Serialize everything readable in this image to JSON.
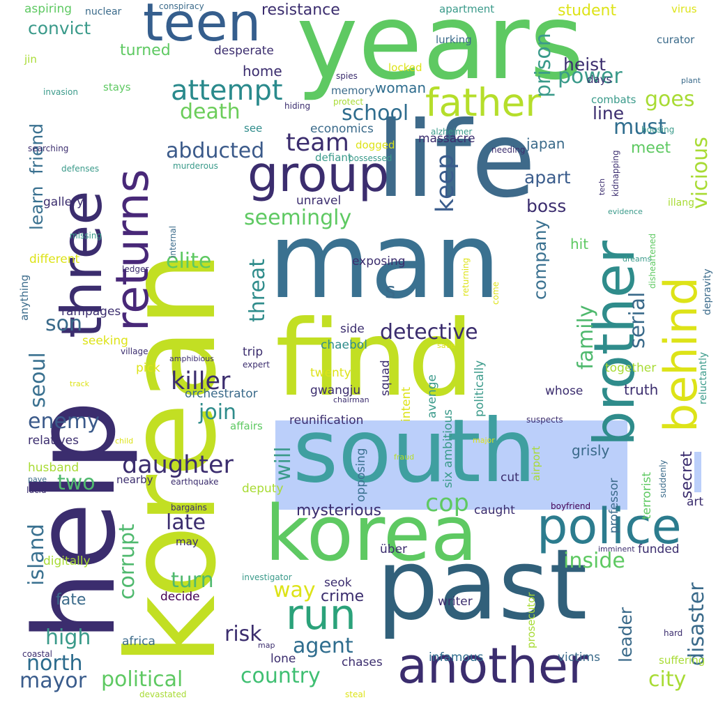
{
  "words": [
    {
      "text": "years",
      "size": 150,
      "color": "#5ec962",
      "rot": 0
    },
    {
      "text": "life",
      "size": 150,
      "color": "#3e6a8a",
      "rot": 0
    },
    {
      "text": "man",
      "size": 150,
      "color": "#3a7190",
      "rot": 0
    },
    {
      "text": "korean",
      "size": 175,
      "color": "#c2df23",
      "rot": -90
    },
    {
      "text": "help",
      "size": 160,
      "color": "#3b2d6e",
      "rot": -90
    },
    {
      "text": "find",
      "size": 150,
      "color": "#c2df23",
      "rot": 0
    },
    {
      "text": "past",
      "size": 140,
      "color": "#31607a",
      "rot": 0
    },
    {
      "text": "korea",
      "size": 110,
      "color": "#5ec962",
      "rot": 0
    },
    {
      "text": "south",
      "size": 125,
      "color": "#3f9fa0",
      "rot": 0
    },
    {
      "text": "three",
      "size": 80,
      "color": "#3b2d6e",
      "rot": -90
    },
    {
      "text": "teen",
      "size": 75,
      "color": "#355e8d",
      "rot": 0
    },
    {
      "text": "brother",
      "size": 80,
      "color": "#2f8c8b",
      "rot": -90
    },
    {
      "text": "behind",
      "size": 65,
      "color": "#dde318",
      "rot": -90
    },
    {
      "text": "another",
      "size": 70,
      "color": "#3b2d6e",
      "rot": 0
    },
    {
      "text": "police",
      "size": 70,
      "color": "#2c7c8e",
      "rot": 0
    },
    {
      "text": "group",
      "size": 70,
      "color": "#3b2d6e",
      "rot": 0
    },
    {
      "text": "father",
      "size": 55,
      "color": "#b5de2b",
      "rot": 0
    },
    {
      "text": "returns",
      "size": 65,
      "color": "#482878",
      "rot": -90
    },
    {
      "text": "run",
      "size": 60,
      "color": "#2ba27a",
      "rot": 0
    },
    {
      "text": "attempt",
      "size": 40,
      "color": "#2a8a8c",
      "rot": 0
    },
    {
      "text": "death",
      "size": 30,
      "color": "#6bcd5a",
      "rot": 0
    },
    {
      "text": "abducted",
      "size": 30,
      "color": "#3b5a8a",
      "rot": 0
    },
    {
      "text": "team",
      "size": 35,
      "color": "#3b2d6e",
      "rot": 0
    },
    {
      "text": "school",
      "size": 30,
      "color": "#2f6d8e",
      "rot": 0
    },
    {
      "text": "must",
      "size": 30,
      "color": "#2f6d8e",
      "rot": 0
    },
    {
      "text": "keep",
      "size": 35,
      "color": "#3a5c8c",
      "rot": -90
    },
    {
      "text": "prison",
      "size": 30,
      "color": "#3a9a8a",
      "rot": -90
    },
    {
      "text": "power",
      "size": 30,
      "color": "#3a9a8a",
      "rot": 0
    },
    {
      "text": "heist",
      "size": 25,
      "color": "#3b2d6e",
      "rot": 0
    },
    {
      "text": "goes",
      "size": 30,
      "color": "#a8db34",
      "rot": 0
    },
    {
      "text": "line",
      "size": 25,
      "color": "#3b2d6e",
      "rot": 0
    },
    {
      "text": "meet",
      "size": 22,
      "color": "#5ec962",
      "rot": 0
    },
    {
      "text": "vicious",
      "size": 30,
      "color": "#a8db34",
      "rot": -90
    },
    {
      "text": "seemingly",
      "size": 30,
      "color": "#5ec962",
      "rot": 0
    },
    {
      "text": "apart",
      "size": 25,
      "color": "#3a5c8c",
      "rot": 0
    },
    {
      "text": "boss",
      "size": 25,
      "color": "#3b2d6e",
      "rot": 0
    },
    {
      "text": "company",
      "size": 25,
      "color": "#3a7190",
      "rot": -90
    },
    {
      "text": "serial",
      "size": 30,
      "color": "#3a6a8a",
      "rot": -90
    },
    {
      "text": "family",
      "size": 30,
      "color": "#4fb96e",
      "rot": -90
    },
    {
      "text": "hit",
      "size": 20,
      "color": "#5ec962",
      "rot": 0
    },
    {
      "text": "elite",
      "size": 30,
      "color": "#5ec962",
      "rot": 0
    },
    {
      "text": "threat",
      "size": 30,
      "color": "#2f8c8b",
      "rot": -90
    },
    {
      "text": "detective",
      "size": 30,
      "color": "#3b2d6e",
      "rot": 0
    },
    {
      "text": "son",
      "size": 30,
      "color": "#3a6a8a",
      "rot": 0
    },
    {
      "text": "killer",
      "size": 35,
      "color": "#3b2d6e",
      "rot": 0
    },
    {
      "text": "join",
      "size": 30,
      "color": "#2f8c8b",
      "rot": 0
    },
    {
      "text": "enemy",
      "size": 30,
      "color": "#3b5a8a",
      "rot": 0
    },
    {
      "text": "daughter",
      "size": 35,
      "color": "#3b2d6e",
      "rot": 0
    },
    {
      "text": "two",
      "size": 30,
      "color": "#4fb96e",
      "rot": 0
    },
    {
      "text": "seoul",
      "size": 30,
      "color": "#3a7190",
      "rot": -90
    },
    {
      "text": "island",
      "size": 30,
      "color": "#3a7190",
      "rot": -90
    },
    {
      "text": "late",
      "size": 30,
      "color": "#3b2d6e",
      "rot": 0
    },
    {
      "text": "corrupt",
      "size": 30,
      "color": "#4fb96e",
      "rot": -90
    },
    {
      "text": "turn",
      "size": 30,
      "color": "#4fb96e",
      "rot": 0
    },
    {
      "text": "fate",
      "size": 22,
      "color": "#3a6a8a",
      "rot": 0
    },
    {
      "text": "high",
      "size": 30,
      "color": "#3a9a8a",
      "rot": 0
    },
    {
      "text": "north",
      "size": 30,
      "color": "#2a6a8c",
      "rot": 0
    },
    {
      "text": "mayor",
      "size": 30,
      "color": "#3a5c8c",
      "rot": 0
    },
    {
      "text": "political",
      "size": 30,
      "color": "#5ec962",
      "rot": 0
    },
    {
      "text": "country",
      "size": 30,
      "color": "#3fbf72",
      "rot": 0
    },
    {
      "text": "risk",
      "size": 30,
      "color": "#3b2d6e",
      "rot": 0
    },
    {
      "text": "agent",
      "size": 30,
      "color": "#2f6d8e",
      "rot": 0
    },
    {
      "text": "crime",
      "size": 22,
      "color": "#3b2d6e",
      "rot": 0
    },
    {
      "text": "way",
      "size": 30,
      "color": "#dde318",
      "rot": 0
    },
    {
      "text": "cop",
      "size": 35,
      "color": "#5ec962",
      "rot": 0
    },
    {
      "text": "mysterious",
      "size": 22,
      "color": "#3b2d6e",
      "rot": 0
    },
    {
      "text": "inside",
      "size": 30,
      "color": "#5ec962",
      "rot": 0
    },
    {
      "text": "disaster",
      "size": 30,
      "color": "#3a6a8a",
      "rot": -90
    },
    {
      "text": "leader",
      "size": 25,
      "color": "#3a6a8a",
      "rot": -90
    },
    {
      "text": "city",
      "size": 30,
      "color": "#a8db34",
      "rot": 0
    },
    {
      "text": "secret",
      "size": 22,
      "color": "#3b2d6e",
      "rot": -90
    },
    {
      "text": "will",
      "size": 30,
      "color": "#3a9a8a",
      "rot": -90
    },
    {
      "text": "convict",
      "size": 25,
      "color": "#3a9a8a",
      "rot": 0
    },
    {
      "text": "turned",
      "size": 22,
      "color": "#5ec962",
      "rot": 0
    },
    {
      "text": "resistance",
      "size": 22,
      "color": "#3b2d6e",
      "rot": 0
    },
    {
      "text": "woman",
      "size": 20,
      "color": "#2f6d8e",
      "rot": 0
    },
    {
      "text": "student",
      "size": 22,
      "color": "#dde318",
      "rot": 0
    },
    {
      "text": "desperate",
      "size": 17,
      "color": "#3b2d6e",
      "rot": 0
    },
    {
      "text": "home",
      "size": 20,
      "color": "#3b2d6e",
      "rot": 0
    },
    {
      "text": "learn",
      "size": 25,
      "color": "#3a7190",
      "rot": -90
    },
    {
      "text": "friend",
      "size": 25,
      "color": "#3a7190",
      "rot": -90
    },
    {
      "text": "gallery",
      "size": 17,
      "color": "#3b2d6e",
      "rot": 0
    },
    {
      "text": "economics",
      "size": 17,
      "color": "#3a6a8a",
      "rot": 0
    },
    {
      "text": "massacre",
      "size": 17,
      "color": "#3b2d6e",
      "rot": 0
    },
    {
      "text": "japan",
      "size": 20,
      "color": "#3a6a8a",
      "rot": 0
    },
    {
      "text": "unravel",
      "size": 17,
      "color": "#3b2d6e",
      "rot": 0
    },
    {
      "text": "exposing",
      "size": 17,
      "color": "#3b2d6e",
      "rot": 0
    },
    {
      "text": "s",
      "size": 30,
      "color": "#3a6a8a",
      "rot": 0
    },
    {
      "text": "side",
      "size": 17,
      "color": "#3b2d6e",
      "rot": 0
    },
    {
      "text": "chaebol",
      "size": 17,
      "color": "#2f8c8b",
      "rot": 0
    },
    {
      "text": "trip",
      "size": 17,
      "color": "#3b2d6e",
      "rot": 0
    },
    {
      "text": "twenty",
      "size": 17,
      "color": "#dde318",
      "rot": 0
    },
    {
      "text": "orchestrator",
      "size": 17,
      "color": "#3a6a8a",
      "rot": 0
    },
    {
      "text": "gwangju",
      "size": 17,
      "color": "#3b2d6e",
      "rot": 0
    },
    {
      "text": "squad",
      "size": 17,
      "color": "#3b2d6e",
      "rot": -90
    },
    {
      "text": "intent",
      "size": 17,
      "color": "#dde318",
      "rot": -90
    },
    {
      "text": "avenge",
      "size": 17,
      "color": "#3a9a8a",
      "rot": -90
    },
    {
      "text": "six ambitious",
      "size": 17,
      "color": "#3a9a8a",
      "rot": -90
    },
    {
      "text": "opposing",
      "size": 17,
      "color": "#3a7190",
      "rot": -90
    },
    {
      "text": "politically",
      "size": 17,
      "color": "#3a9a8a",
      "rot": -90
    },
    {
      "text": "reunification",
      "size": 17,
      "color": "#3b2d6e",
      "rot": 0
    },
    {
      "text": "cut",
      "size": 17,
      "color": "#3b2d6e",
      "rot": 0
    },
    {
      "text": "grisly",
      "size": 20,
      "color": "#3a6a8a",
      "rot": 0
    },
    {
      "text": "whose",
      "size": 17,
      "color": "#3b2d6e",
      "rot": 0
    },
    {
      "text": "truth",
      "size": 20,
      "color": "#3b2d6e",
      "rot": 0
    },
    {
      "text": "together",
      "size": 17,
      "color": "#a8db34",
      "rot": 0
    },
    {
      "text": "deputy",
      "size": 17,
      "color": "#a8db34",
      "rot": 0
    },
    {
      "text": "caught",
      "size": 17,
      "color": "#3b2d6e",
      "rot": 0
    },
    {
      "text": "terrorist",
      "size": 17,
      "color": "#5ec962",
      "rot": -90
    },
    {
      "text": "professor",
      "size": 17,
      "color": "#3a6a8a",
      "rot": -90
    },
    {
      "text": "art",
      "size": 17,
      "color": "#3b2d6e",
      "rot": 0
    },
    {
      "text": "funded",
      "size": 17,
      "color": "#3b2d6e",
      "rot": 0
    },
    {
      "text": "writer",
      "size": 17,
      "color": "#3b2d6e",
      "rot": 0
    },
    {
      "text": "seok",
      "size": 17,
      "color": "#3b2d6e",
      "rot": 0
    },
    {
      "text": "über",
      "size": 17,
      "color": "#3b2d6e",
      "rot": 0
    },
    {
      "text": "decide",
      "size": 17,
      "color": "#440154",
      "rot": 0
    },
    {
      "text": "africa",
      "size": 17,
      "color": "#3a6a8a",
      "rot": 0
    },
    {
      "text": "lone",
      "size": 17,
      "color": "#3b2d6e",
      "rot": 0
    },
    {
      "text": "chases",
      "size": 17,
      "color": "#3b2d6e",
      "rot": 0
    },
    {
      "text": "infamous",
      "size": 17,
      "color": "#2f6d8e",
      "rot": 0
    },
    {
      "text": "victims",
      "size": 17,
      "color": "#3a6a8a",
      "rot": 0
    },
    {
      "text": "suffering",
      "size": 15,
      "color": "#a8db34",
      "rot": 0
    },
    {
      "text": "prosecutor",
      "size": 15,
      "color": "#a8db34",
      "rot": -90
    },
    {
      "text": "may",
      "size": 15,
      "color": "#3b2d6e",
      "rot": 0
    },
    {
      "text": "digitally",
      "size": 17,
      "color": "#a8db34",
      "rot": 0
    },
    {
      "text": "husband",
      "size": 17,
      "color": "#a8db34",
      "rot": 0
    },
    {
      "text": "relatives",
      "size": 17,
      "color": "#3b2d6e",
      "rot": 0
    },
    {
      "text": "rampages",
      "size": 17,
      "color": "#3b2d6e",
      "rot": 0
    },
    {
      "text": "seeking",
      "size": 17,
      "color": "#dde318",
      "rot": 0
    },
    {
      "text": "different",
      "size": 17,
      "color": "#dde318",
      "rot": 0
    },
    {
      "text": "pick",
      "size": 17,
      "color": "#dde318",
      "rot": 0
    },
    {
      "text": "nearby",
      "size": 15,
      "color": "#3b2d6e",
      "rot": 0
    },
    {
      "text": "affairs",
      "size": 15,
      "color": "#5ec962",
      "rot": 0
    },
    {
      "text": "aspiring",
      "size": 17,
      "color": "#5ec962",
      "rot": 0
    },
    {
      "text": "stays",
      "size": 15,
      "color": "#5ec962",
      "rot": 0
    },
    {
      "text": "memory",
      "size": 15,
      "color": "#3a6a8a",
      "rot": 0
    },
    {
      "text": "locked",
      "size": 15,
      "color": "#dde318",
      "rot": 0
    },
    {
      "text": "apartment",
      "size": 15,
      "color": "#3a9a8a",
      "rot": 0
    },
    {
      "text": "lurking",
      "size": 15,
      "color": "#3a6a8a",
      "rot": 0
    },
    {
      "text": "days",
      "size": 15,
      "color": "#3b2d6e",
      "rot": 0
    },
    {
      "text": "curator",
      "size": 15,
      "color": "#3a6a8a",
      "rot": 0
    },
    {
      "text": "virus",
      "size": 15,
      "color": "#dde318",
      "rot": 0
    },
    {
      "text": "combats",
      "size": 15,
      "color": "#3a9a8a",
      "rot": 0
    },
    {
      "text": "housing",
      "size": 12,
      "color": "#3a9a8a",
      "rot": 0
    },
    {
      "text": "kidnapping",
      "size": 12,
      "color": "#3b2d6e",
      "rot": -90
    },
    {
      "text": "illang",
      "size": 14,
      "color": "#a8db34",
      "rot": 0
    },
    {
      "text": "depravity",
      "size": 14,
      "color": "#3a6a8a",
      "rot": -90
    },
    {
      "text": "disheartened",
      "size": 12,
      "color": "#5ec962",
      "rot": -90
    },
    {
      "text": "reluctantly",
      "size": 14,
      "color": "#3a9a8a",
      "rot": -90
    },
    {
      "text": "suddenly",
      "size": 12,
      "color": "#3a6a8a",
      "rot": -90
    },
    {
      "text": "boyfriend",
      "size": 12,
      "color": "#440154",
      "rot": 0
    },
    {
      "text": "imminent",
      "size": 11,
      "color": "#3b2d6e",
      "rot": 0
    },
    {
      "text": "hard",
      "size": 12,
      "color": "#3b2d6e",
      "rot": 0
    },
    {
      "text": "come",
      "size": 12,
      "color": "#dde318",
      "rot": -90
    },
    {
      "text": "returning",
      "size": 12,
      "color": "#dde318",
      "rot": -90
    },
    {
      "text": "airport",
      "size": 15,
      "color": "#a8db34",
      "rot": -90
    },
    {
      "text": "major",
      "size": 11,
      "color": "#dde318",
      "rot": 0
    },
    {
      "text": "fraud",
      "size": 11,
      "color": "#b5de2b",
      "rot": 0
    },
    {
      "text": "suspects",
      "size": 12,
      "color": "#3b2d6e",
      "rot": 0
    },
    {
      "text": "save",
      "size": 11,
      "color": "#dde318",
      "rot": 0
    },
    {
      "text": "chairman",
      "size": 11,
      "color": "#3b2d6e",
      "rot": 0
    },
    {
      "text": "expert",
      "size": 12,
      "color": "#3b2d6e",
      "rot": 0
    },
    {
      "text": "amphibious",
      "size": 11,
      "color": "#3b2d6e",
      "rot": 0
    },
    {
      "text": "village",
      "size": 12,
      "color": "#3b2d6e",
      "rot": 0
    },
    {
      "text": "track",
      "size": 11,
      "color": "#dde318",
      "rot": 0
    },
    {
      "text": "child",
      "size": 11,
      "color": "#dde318",
      "rot": 0
    },
    {
      "text": "pave",
      "size": 11,
      "color": "#3a6a8a",
      "rot": 0
    },
    {
      "text": "lucid",
      "size": 12,
      "color": "#3b2d6e",
      "rot": 0
    },
    {
      "text": "earthquake",
      "size": 12,
      "color": "#3b2d6e",
      "rot": 0
    },
    {
      "text": "bargains",
      "size": 12,
      "color": "#3b2d6e",
      "rot": 0
    },
    {
      "text": "investigator",
      "size": 12,
      "color": "#3a9a8a",
      "rot": 0
    },
    {
      "text": "map",
      "size": 11,
      "color": "#3b2d6e",
      "rot": 0
    },
    {
      "text": "coastal",
      "size": 12,
      "color": "#3b2d6e",
      "rot": 0
    },
    {
      "text": "devastated",
      "size": 12,
      "color": "#a8db34",
      "rot": 0
    },
    {
      "text": "steal",
      "size": 12,
      "color": "#dde318",
      "rot": 0
    },
    {
      "text": "anything",
      "size": 15,
      "color": "#3a6a8a",
      "rot": -90
    },
    {
      "text": "ledger",
      "size": 12,
      "color": "#3b2d6e",
      "rot": 0
    },
    {
      "text": "internal",
      "size": 12,
      "color": "#3a6a8a",
      "rot": -90
    },
    {
      "text": "missing",
      "size": 12,
      "color": "#3a9a8a",
      "rot": 0
    },
    {
      "text": "defenses",
      "size": 12,
      "color": "#3a9a8a",
      "rot": 0
    },
    {
      "text": "murderous",
      "size": 12,
      "color": "#3a9a8a",
      "rot": 0
    },
    {
      "text": "searching",
      "size": 12,
      "color": "#3b2d6e",
      "rot": 0
    },
    {
      "text": "invasion",
      "size": 12,
      "color": "#3a9a8a",
      "rot": 0
    },
    {
      "text": "hiding",
      "size": 12,
      "color": "#3b2d6e",
      "rot": 0
    },
    {
      "text": "protect",
      "size": 12,
      "color": "#a8db34",
      "rot": 0
    },
    {
      "text": "spies",
      "size": 12,
      "color": "#3b2d6e",
      "rot": 0
    },
    {
      "text": "alzheimer",
      "size": 12,
      "color": "#3a9a8a",
      "rot": 0
    },
    {
      "text": "needing",
      "size": 12,
      "color": "#3b2d6e",
      "rot": 0
    },
    {
      "text": "dogged",
      "size": 15,
      "color": "#dde318",
      "rot": 0
    },
    {
      "text": "defiant",
      "size": 15,
      "color": "#3a9a8a",
      "rot": 0
    },
    {
      "text": "possessed",
      "size": 12,
      "color": "#3a9a8a",
      "rot": 0
    },
    {
      "text": "tech",
      "size": 11,
      "color": "#3b2d6e",
      "rot": -90
    },
    {
      "text": "evidence",
      "size": 11,
      "color": "#3a9a8a",
      "rot": 0
    },
    {
      "text": "dreams",
      "size": 11,
      "color": "#3a9a8a",
      "rot": 0
    },
    {
      "text": "plant",
      "size": 11,
      "color": "#3a6a8a",
      "rot": 0
    },
    {
      "text": "nuclear",
      "size": 14,
      "color": "#3a6a8a",
      "rot": 0
    },
    {
      "text": "conspiracy",
      "size": 12,
      "color": "#3a6a8a",
      "rot": 0
    },
    {
      "text": "jin",
      "size": 15,
      "color": "#a8db34",
      "rot": 0
    },
    {
      "text": "see",
      "size": 15,
      "color": "#2f8c8b",
      "rot": 0
    }
  ]
}
